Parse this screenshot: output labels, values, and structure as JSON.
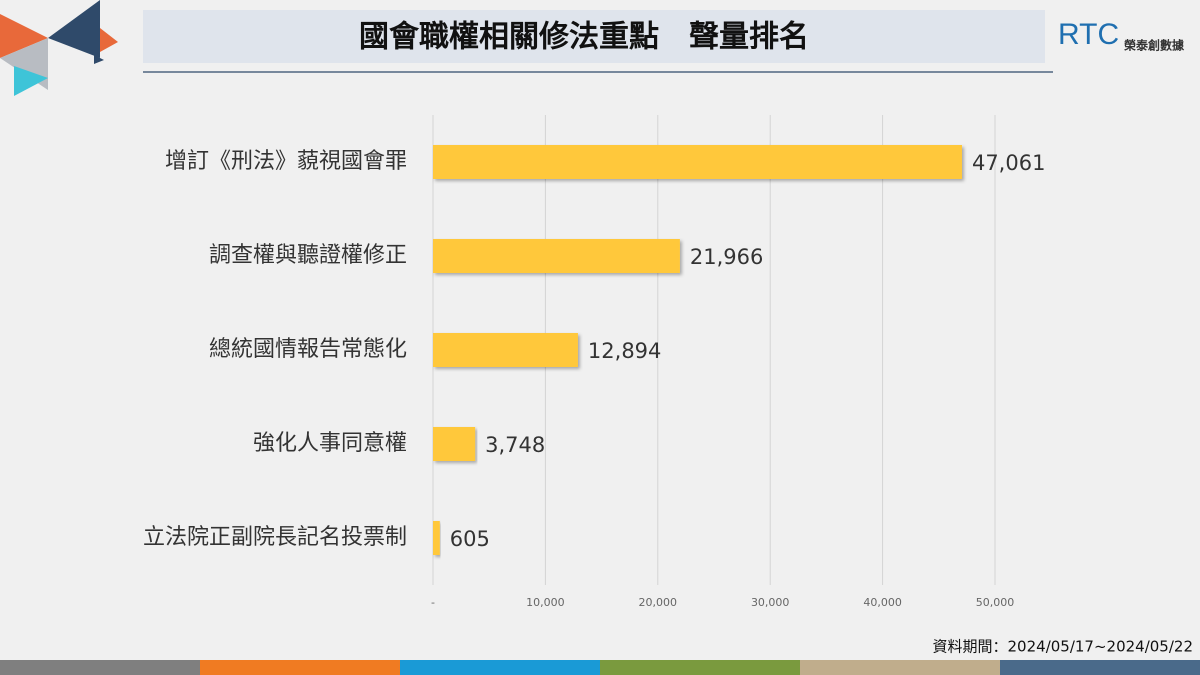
{
  "logo": {
    "text": "RTC",
    "subtitle": "榮泰創數據"
  },
  "source": "資料期間：2024/05/17~2024/05/22",
  "chart_data": {
    "type": "bar",
    "orientation": "horizontal",
    "title": "國會職權相關修法重點　聲量排名",
    "categories": [
      "增訂《刑法》藐視國會罪",
      "調查權與聽證權修正",
      "總統國情報告常態化",
      "強化人事同意權",
      "立法院正副院長記名投票制"
    ],
    "values": [
      47061,
      21966,
      12894,
      3748,
      605
    ],
    "value_labels": [
      "47,061",
      "21,966",
      "12,894",
      "3,748",
      "605"
    ],
    "color": "#ffc83a",
    "xlim": [
      0,
      50000
    ],
    "xticks": [
      {
        "value": 0,
        "label": "-"
      },
      {
        "value": 10000,
        "label": "10,000"
      },
      {
        "value": 20000,
        "label": "20,000"
      },
      {
        "value": 30000,
        "label": "30,000"
      },
      {
        "value": 40000,
        "label": "40,000"
      },
      {
        "value": 50000,
        "label": "50,000"
      }
    ],
    "grid": true
  }
}
